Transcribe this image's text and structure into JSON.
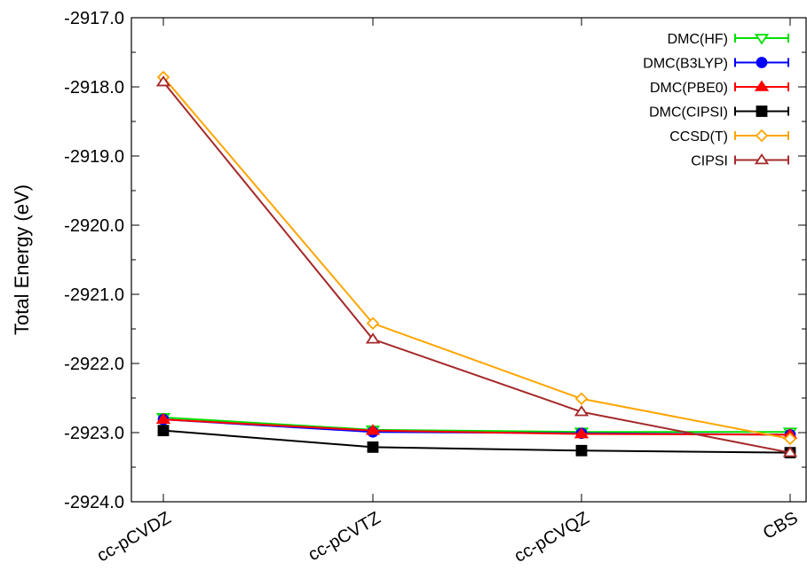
{
  "chart_data": {
    "type": "line",
    "title": "",
    "xlabel": "",
    "ylabel": "Total Energy (eV)",
    "categories": [
      "cc-pCVDZ",
      "cc-pCVTZ",
      "cc-pCVQZ",
      "CBS"
    ],
    "ylim": [
      -2924.0,
      -2917.0
    ],
    "yticks": [
      "-2917.0",
      "-2918.0",
      "-2919.0",
      "-2920.0",
      "-2921.0",
      "-2922.0",
      "-2923.0",
      "-2924.0"
    ],
    "grid": false,
    "legend_position": "top-right",
    "series": [
      {
        "name": "DMC(HF)",
        "color": "#00e000",
        "marker": "triangle-down-open",
        "values": [
          -2922.78,
          -2922.96,
          -2922.99,
          -2922.99
        ]
      },
      {
        "name": "DMC(B3LYP)",
        "color": "#0000ff",
        "marker": "circle-filled",
        "values": [
          -2922.81,
          -2922.99,
          -2923.01,
          -2923.03
        ]
      },
      {
        "name": "DMC(PBE0)",
        "color": "#ff0000",
        "marker": "triangle-up-filled",
        "values": [
          -2922.81,
          -2922.97,
          -2923.02,
          -2923.03
        ]
      },
      {
        "name": "DMC(CIPSI)",
        "color": "#000000",
        "marker": "square-filled",
        "values": [
          -2922.97,
          -2923.21,
          -2923.26,
          -2923.29
        ]
      },
      {
        "name": "CCSD(T)",
        "color": "#ffa500",
        "marker": "diamond-open",
        "values": [
          -2917.86,
          -2921.42,
          -2922.51,
          -2923.09
        ]
      },
      {
        "name": "CIPSI",
        "color": "#a52a2a",
        "marker": "triangle-up-open",
        "values": [
          -2917.93,
          -2921.65,
          -2922.7,
          -2923.29
        ]
      }
    ]
  }
}
